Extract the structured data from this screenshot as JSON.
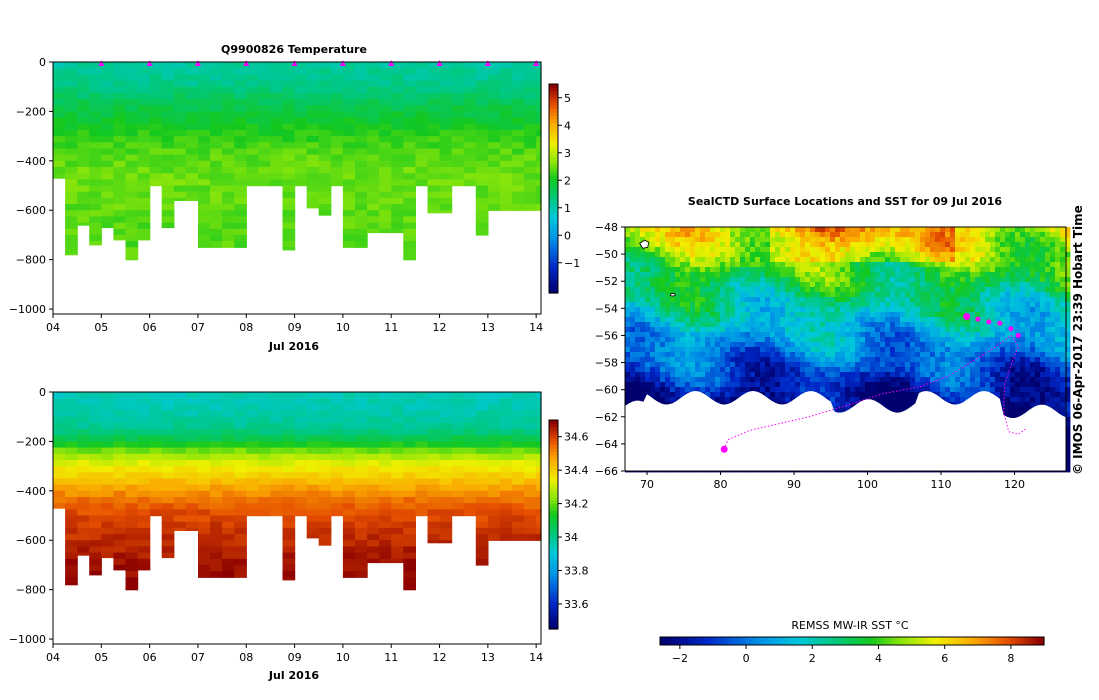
{
  "chart_data": [
    {
      "id": "temp",
      "type": "heatmap",
      "title": "Q9900826  Temperature",
      "xlabel": "Jul 2016",
      "ylabel": "",
      "x_ticks": [
        "04",
        "05",
        "06",
        "07",
        "08",
        "09",
        "10",
        "11",
        "12",
        "13",
        "14"
      ],
      "xlim": [
        4,
        14.1
      ],
      "y_ticks": [
        "0",
        "−200",
        "−400",
        "−600",
        "−800",
        "−1000"
      ],
      "y_tick_values": [
        0,
        -200,
        -400,
        -600,
        -800,
        -1000
      ],
      "ylim": [
        -1020,
        0
      ],
      "colorbar_ticks": [
        "−1",
        "0",
        "1",
        "2",
        "3",
        "4",
        "5"
      ],
      "colorbar_values": [
        -1,
        0,
        1,
        2,
        3,
        4,
        5
      ],
      "colorbar_range": [
        -2.1,
        5.5
      ],
      "profile_days": [
        4.0,
        4.25,
        4.5,
        4.75,
        5.0,
        5.25,
        5.5,
        5.75,
        6.0,
        6.25,
        6.5,
        6.75,
        7.0,
        7.25,
        7.5,
        7.75,
        8.0,
        8.25,
        8.5,
        8.75,
        9.0,
        9.25,
        9.5,
        9.75,
        10.0,
        10.25,
        10.5,
        10.75,
        11.0,
        11.25,
        11.5,
        11.75,
        12.0,
        12.25,
        12.5,
        12.75,
        13.0,
        13.25,
        13.5,
        13.75,
        14.0
      ],
      "profile_max_depth": [
        -470,
        -780,
        -660,
        -740,
        -670,
        -720,
        -800,
        -720,
        -500,
        -670,
        -560,
        -560,
        -750,
        -750,
        -750,
        -750,
        -500,
        -500,
        -500,
        -760,
        -500,
        -590,
        -620,
        -500,
        -750,
        -750,
        -690,
        -690,
        -690,
        -800,
        -500,
        -610,
        -610,
        -500,
        -500,
        -700,
        -600,
        -600,
        -600,
        -600,
        -600
      ],
      "depth_levels": [
        0,
        -50,
        -100,
        -150,
        -200,
        -250,
        -300,
        -350,
        -400,
        -450,
        -500,
        -600,
        -700,
        -800
      ],
      "temperature_profile": [
        1.1,
        1.2,
        1.3,
        1.6,
        1.8,
        2.0,
        2.2,
        2.35,
        2.45,
        2.5,
        2.5,
        2.45,
        2.4,
        2.4
      ],
      "surface_markers": [
        5,
        6,
        7,
        8,
        9,
        10,
        11,
        12,
        13,
        14
      ]
    },
    {
      "id": "sal",
      "type": "heatmap",
      "title": "",
      "xlabel": "Jul 2016",
      "ylabel": "",
      "x_ticks": [
        "04",
        "05",
        "06",
        "07",
        "08",
        "09",
        "10",
        "11",
        "12",
        "13",
        "14"
      ],
      "xlim": [
        4,
        14.1
      ],
      "y_ticks": [
        "0",
        "−200",
        "−400",
        "−600",
        "−800",
        "−1000"
      ],
      "y_tick_values": [
        0,
        -200,
        -400,
        -600,
        -800,
        -1000
      ],
      "ylim": [
        -1020,
        0
      ],
      "colorbar_ticks": [
        "33.6",
        "33.8",
        "34",
        "34.2",
        "34.4",
        "34.6"
      ],
      "colorbar_values": [
        33.6,
        33.8,
        34.0,
        34.2,
        34.4,
        34.6
      ],
      "colorbar_range": [
        33.45,
        34.7
      ],
      "salinity_profile": [
        33.95,
        33.95,
        33.97,
        34.0,
        34.1,
        34.25,
        34.35,
        34.42,
        34.5,
        34.56,
        34.6,
        34.64,
        34.68,
        34.7
      ]
    },
    {
      "id": "sst",
      "type": "heatmap",
      "title": "SealCTD Surface Locations and SST for 09 Jul 2016",
      "x_ticks": [
        "70",
        "80",
        "90",
        "100",
        "110",
        "120"
      ],
      "x_tick_values": [
        70,
        80,
        90,
        100,
        110,
        120
      ],
      "xlim": [
        67,
        127
      ],
      "y_ticks": [
        "−48",
        "−50",
        "−52",
        "−54",
        "−56",
        "−58",
        "−60",
        "−62",
        "−64",
        "−66"
      ],
      "y_tick_values": [
        -48,
        -50,
        -52,
        -54,
        -56,
        -58,
        -60,
        -62,
        -64,
        -66
      ],
      "ylim": [
        -66,
        -48
      ],
      "colorbar_label": "REMSS MW-IR SST °C",
      "colorbar_ticks": [
        "−2",
        "0",
        "2",
        "4",
        "6",
        "8"
      ],
      "colorbar_values": [
        -2,
        0,
        2,
        4,
        6,
        8
      ],
      "colorbar_range": [
        -2.6,
        9.0
      ],
      "seal_positions": [
        [
          113.5,
          -54.6
        ],
        [
          115.0,
          -54.8
        ],
        [
          116.5,
          -55.0
        ],
        [
          118.0,
          -55.1
        ],
        [
          119.5,
          -55.5
        ],
        [
          120.5,
          -56.0
        ]
      ],
      "seal_start": [
        80.5,
        -64.4
      ],
      "side_text": "© IMOS 06-Apr-2017 23:39 Hobart Time"
    }
  ]
}
